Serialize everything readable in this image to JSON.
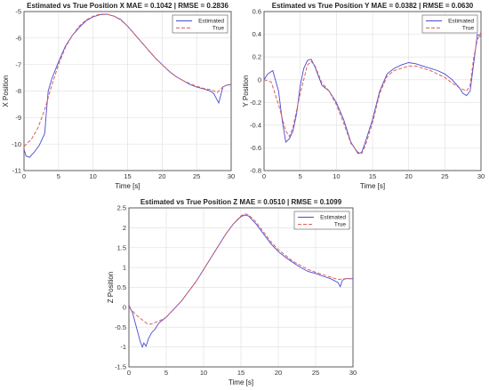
{
  "chart_data": [
    {
      "type": "line",
      "title": "Estimated vs True Position X MAE = 0.1042 | RMSE = 0.2836",
      "xlabel": "Time [s]",
      "ylabel": "X Position",
      "xlim": [
        0,
        30
      ],
      "ylim": [
        -11,
        -5
      ],
      "xticks": [
        "0",
        "5",
        "10",
        "15",
        "20",
        "25",
        "30"
      ],
      "yticks": [
        "-11",
        "-10",
        "-9",
        "-8",
        "-7",
        "-6",
        "-5"
      ],
      "grid": true,
      "legend": "top-right",
      "series": [
        {
          "name": "Estimated",
          "color": "#4a4ad0",
          "style": "solid",
          "x": [
            0,
            0.3,
            0.8,
            1.5,
            2.2,
            3.0,
            3.2,
            3.5,
            4,
            5,
            6,
            7,
            8,
            9,
            10,
            11,
            12,
            13,
            14,
            15,
            16,
            17,
            18,
            19,
            20,
            21,
            22,
            23,
            24,
            25,
            26,
            27,
            27.5,
            28.2,
            28.8,
            29.3,
            30
          ],
          "y": [
            -10.2,
            -10.45,
            -10.5,
            -10.3,
            -10.05,
            -9.6,
            -8.9,
            -8.0,
            -7.55,
            -6.9,
            -6.3,
            -5.9,
            -5.6,
            -5.35,
            -5.2,
            -5.12,
            -5.1,
            -5.17,
            -5.3,
            -5.55,
            -5.85,
            -6.15,
            -6.45,
            -6.75,
            -7.0,
            -7.25,
            -7.45,
            -7.6,
            -7.75,
            -7.85,
            -7.92,
            -8.0,
            -8.1,
            -8.45,
            -7.85,
            -7.78,
            -7.75
          ]
        },
        {
          "name": "True",
          "color": "#d96060",
          "style": "dashed",
          "x": [
            0,
            0.5,
            1,
            2,
            3,
            4,
            5,
            6,
            7,
            8,
            9,
            10,
            11,
            12,
            13,
            14,
            15,
            16,
            17,
            18,
            19,
            20,
            21,
            22,
            23,
            24,
            25,
            26,
            27,
            28,
            29,
            30
          ],
          "y": [
            -10.1,
            -9.95,
            -9.85,
            -9.4,
            -8.7,
            -7.8,
            -7.0,
            -6.35,
            -5.9,
            -5.55,
            -5.32,
            -5.18,
            -5.1,
            -5.1,
            -5.17,
            -5.32,
            -5.55,
            -5.85,
            -6.15,
            -6.45,
            -6.75,
            -7.0,
            -7.25,
            -7.45,
            -7.6,
            -7.72,
            -7.82,
            -7.9,
            -7.95,
            -8.05,
            -7.8,
            -7.75
          ]
        }
      ]
    },
    {
      "type": "line",
      "title": "Estimated vs True Position Y MAE = 0.0382 | RMSE = 0.0630",
      "xlabel": "Time [s]",
      "ylabel": "Y Position",
      "xlim": [
        0,
        30
      ],
      "ylim": [
        -0.8,
        0.6
      ],
      "xticks": [
        "0",
        "5",
        "10",
        "15",
        "20",
        "25",
        "30"
      ],
      "yticks": [
        "-0.8",
        "-0.6",
        "-0.4",
        "-0.2",
        "0",
        "0.2",
        "0.4",
        "0.6"
      ],
      "grid": true,
      "legend": "top-right",
      "series": [
        {
          "name": "Estimated",
          "color": "#4a4ad0",
          "style": "solid",
          "x": [
            0,
            0.5,
            1.2,
            2,
            2.5,
            3.0,
            3.5,
            4,
            4.5,
            5,
            5.5,
            6,
            6.5,
            7,
            8,
            9,
            10,
            11,
            12,
            13,
            13.5,
            14,
            15,
            16,
            17,
            18,
            19,
            20,
            21,
            22,
            23,
            24,
            25,
            26,
            27,
            27.5,
            28,
            28.5,
            29,
            29.5,
            30
          ],
          "y": [
            0.0,
            0.05,
            0.08,
            -0.1,
            -0.35,
            -0.55,
            -0.52,
            -0.45,
            -0.3,
            -0.05,
            0.1,
            0.17,
            0.18,
            0.12,
            -0.05,
            -0.1,
            -0.2,
            -0.35,
            -0.55,
            -0.65,
            -0.64,
            -0.55,
            -0.35,
            -0.1,
            0.05,
            0.1,
            0.13,
            0.15,
            0.14,
            0.12,
            0.1,
            0.08,
            0.05,
            0.0,
            -0.07,
            -0.12,
            -0.14,
            -0.1,
            0.15,
            0.4,
            0.38
          ]
        },
        {
          "name": "True",
          "color": "#d96060",
          "style": "dashed",
          "x": [
            0,
            1,
            2,
            3,
            3.5,
            4,
            5,
            6,
            6.5,
            7,
            8,
            9,
            10,
            11,
            12,
            13,
            13.5,
            14,
            15,
            16,
            17,
            18,
            19,
            20,
            21,
            22,
            23,
            24,
            25,
            26,
            27,
            28,
            28.5,
            29,
            29.5,
            30
          ],
          "y": [
            0.0,
            -0.02,
            -0.22,
            -0.45,
            -0.5,
            -0.42,
            -0.12,
            0.13,
            0.16,
            0.13,
            -0.03,
            -0.1,
            -0.22,
            -0.38,
            -0.56,
            -0.64,
            -0.65,
            -0.58,
            -0.38,
            -0.12,
            0.03,
            0.08,
            0.1,
            0.12,
            0.12,
            0.1,
            0.08,
            0.05,
            0.02,
            -0.03,
            -0.07,
            -0.1,
            -0.05,
            0.2,
            0.35,
            0.42
          ]
        }
      ]
    },
    {
      "type": "line",
      "title": "Estimated vs True Position Z MAE = 0.0510 | RMSE = 0.1099",
      "xlabel": "Time [s]",
      "ylabel": "Z Position",
      "xlim": [
        0,
        30
      ],
      "ylim": [
        -1.5,
        2.5
      ],
      "xticks": [
        "0",
        "5",
        "10",
        "15",
        "20",
        "25",
        "30"
      ],
      "yticks": [
        "-1.5",
        "-1",
        "-0.5",
        "0",
        "0.5",
        "1",
        "1.5",
        "2",
        "2.5"
      ],
      "grid": true,
      "legend": "top-right",
      "series": [
        {
          "name": "Estimated",
          "color": "#4a4ad0",
          "style": "solid",
          "x": [
            0,
            0.5,
            1,
            1.5,
            1.8,
            2.0,
            2.3,
            2.6,
            3,
            3.5,
            4,
            5,
            6,
            7,
            8,
            9,
            10,
            11,
            12,
            13,
            14,
            15,
            15.5,
            16,
            17,
            18,
            19,
            20,
            21,
            22,
            23,
            24,
            25,
            26,
            27,
            28,
            28.3,
            28.6,
            29,
            30
          ],
          "y": [
            0.05,
            -0.15,
            -0.5,
            -0.85,
            -1.0,
            -0.9,
            -0.98,
            -0.8,
            -0.65,
            -0.55,
            -0.4,
            -0.25,
            -0.05,
            0.15,
            0.4,
            0.65,
            0.95,
            1.25,
            1.55,
            1.85,
            2.1,
            2.28,
            2.32,
            2.3,
            2.1,
            1.85,
            1.6,
            1.4,
            1.25,
            1.12,
            1.0,
            0.9,
            0.85,
            0.78,
            0.72,
            0.62,
            0.52,
            0.68,
            0.72,
            0.72
          ]
        },
        {
          "name": "True",
          "color": "#d96060",
          "style": "dashed",
          "x": [
            0,
            1,
            2,
            2.5,
            3,
            4,
            5,
            6,
            7,
            8,
            9,
            10,
            11,
            12,
            13,
            14,
            15,
            15.5,
            16,
            17,
            18,
            19,
            20,
            21,
            22,
            23,
            24,
            25,
            26,
            27,
            28,
            29,
            30
          ],
          "y": [
            0.0,
            -0.2,
            -0.35,
            -0.42,
            -0.42,
            -0.35,
            -0.25,
            -0.05,
            0.15,
            0.4,
            0.65,
            0.95,
            1.25,
            1.55,
            1.85,
            2.1,
            2.3,
            2.35,
            2.33,
            2.15,
            1.9,
            1.65,
            1.45,
            1.3,
            1.15,
            1.05,
            0.95,
            0.88,
            0.82,
            0.76,
            0.7,
            0.72,
            0.72
          ]
        }
      ]
    }
  ]
}
